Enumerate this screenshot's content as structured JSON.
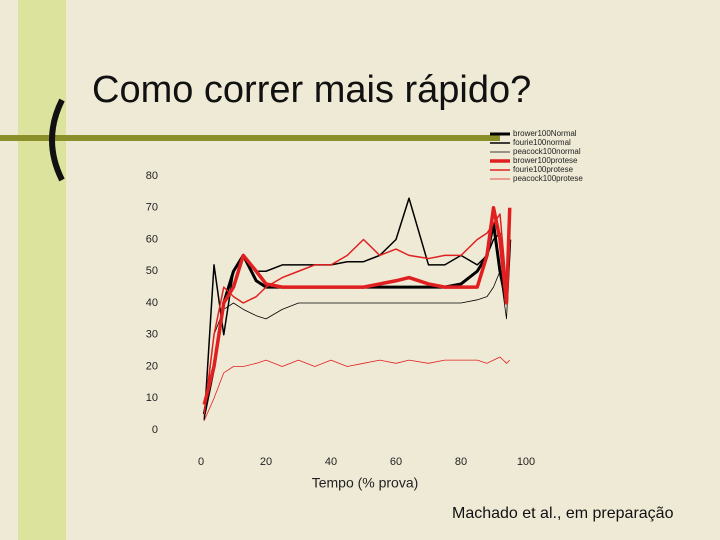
{
  "title": "Como correr mais rápido?",
  "citation": "Machado et al., em preparação",
  "chart_data": {
    "type": "line",
    "xlabel": "Tempo (% prova)",
    "x": [
      1,
      4,
      7,
      10,
      13,
      17,
      20,
      25,
      30,
      35,
      40,
      45,
      50,
      55,
      60,
      64,
      70,
      75,
      80,
      85,
      88,
      90,
      92,
      94,
      95
    ],
    "series": [
      {
        "name": "brower100Normal",
        "color": "#000000",
        "line_width": 3,
        "values": [
          5,
          20,
          40,
          50,
          55,
          47,
          45,
          45,
          45,
          45,
          45,
          45,
          45,
          45,
          45,
          45,
          45,
          45,
          46,
          50,
          55,
          65,
          50,
          40,
          60
        ]
      },
      {
        "name": "fourie100normal",
        "color": "#000000",
        "line_width": 1.5,
        "values": [
          3,
          52,
          30,
          50,
          55,
          50,
          50,
          52,
          52,
          52,
          52,
          53,
          53,
          55,
          60,
          73,
          52,
          52,
          55,
          52,
          55,
          60,
          62,
          40,
          65
        ]
      },
      {
        "name": "peacock100normal",
        "color": "#000000",
        "line_width": 0.8,
        "values": [
          3,
          30,
          38,
          40,
          38,
          36,
          35,
          38,
          40,
          40,
          40,
          40,
          40,
          40,
          40,
          40,
          40,
          40,
          40,
          41,
          42,
          45,
          50,
          35,
          55
        ]
      },
      {
        "name": "brower100protese",
        "color": "#e02020",
        "line_width": 3.5,
        "values": [
          8,
          20,
          40,
          45,
          55,
          50,
          46,
          45,
          45,
          45,
          45,
          45,
          45,
          46,
          47,
          48,
          46,
          45,
          45,
          45,
          55,
          70,
          60,
          40,
          70
        ]
      },
      {
        "name": "fourie100protese",
        "color": "#e02020",
        "line_width": 1.5,
        "values": [
          5,
          30,
          45,
          42,
          40,
          42,
          45,
          48,
          50,
          52,
          52,
          55,
          60,
          55,
          57,
          55,
          54,
          55,
          55,
          60,
          62,
          65,
          68,
          45,
          60
        ]
      },
      {
        "name": "peacock100protese",
        "color": "#e02020",
        "line_width": 0.8,
        "values": [
          3,
          10,
          18,
          20,
          20,
          21,
          22,
          20,
          22,
          20,
          22,
          20,
          21,
          22,
          21,
          22,
          21,
          22,
          22,
          22,
          21,
          22,
          23,
          21,
          22
        ]
      }
    ],
    "xlim": [
      0,
      100
    ],
    "xticks": [
      0,
      20,
      40,
      60,
      80,
      100
    ],
    "ylim": [
      0,
      80
    ],
    "yticks": [
      0,
      10,
      20,
      30,
      40,
      50,
      60,
      70,
      80
    ]
  }
}
